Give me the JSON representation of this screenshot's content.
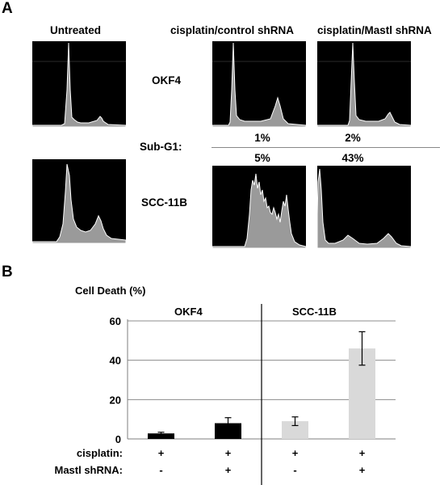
{
  "panel_a": {
    "label": "A",
    "column_headers": [
      "Untreated",
      "cisplatin/control shRNA",
      "cisplatin/Mastl shRNA"
    ],
    "row_labels": [
      "OKF4",
      "SCC-11B"
    ],
    "sub_g1_label": "Sub-G1:",
    "sub_g1_values": {
      "okf4": [
        "1%",
        "2%"
      ],
      "scc11b": [
        "5%",
        "43%"
      ]
    },
    "colors": {
      "background": "#000000",
      "fill": "#9a9a9a",
      "outline": "#ffffff"
    }
  },
  "panel_b": {
    "label": "B"
  },
  "chart_data": {
    "type": "bar",
    "title": "",
    "ylabel": "Cell Death (%)",
    "xlabel": "",
    "ylim": [
      0,
      60
    ],
    "yticks": [
      "0",
      "20",
      "40",
      "60"
    ],
    "groups": [
      "OKF4",
      "SCC-11B"
    ],
    "categories": [
      "OKF4 -shRNA",
      "OKF4 +shRNA",
      "SCC-11B -shRNA",
      "SCC-11B +shRNA"
    ],
    "values": [
      2.8,
      8,
      9,
      46
    ],
    "errors": [
      0.6,
      2.8,
      2.2,
      8.5
    ],
    "bar_colors": [
      "#000000",
      "#000000",
      "#d9d9d9",
      "#d9d9d9"
    ],
    "row_labels": [
      "cisplatin:",
      "Mastl shRNA:"
    ],
    "cisplatin": [
      "+",
      "+",
      "+",
      "+"
    ],
    "mastl_shrna": [
      "-",
      "+",
      "-",
      "+"
    ]
  }
}
